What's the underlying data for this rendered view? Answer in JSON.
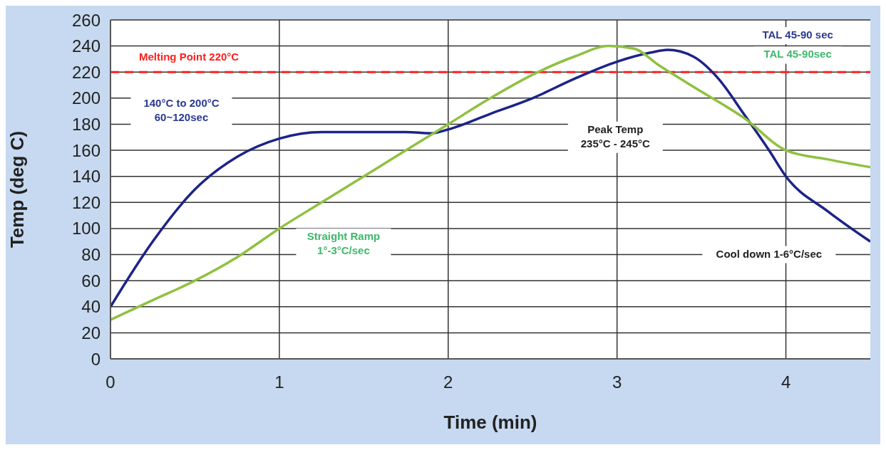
{
  "chart_data": {
    "type": "line",
    "xlabel": "Time (min)",
    "ylabel": "Temp (deg C)",
    "xlim": [
      0,
      4.5
    ],
    "xticks": [
      0,
      1,
      2,
      3,
      4
    ],
    "ylim": [
      0,
      260
    ],
    "yticks": [
      0,
      20,
      40,
      60,
      80,
      100,
      120,
      140,
      160,
      180,
      200,
      220,
      240,
      260
    ],
    "grid": true,
    "marker": "none",
    "line_style": "solid",
    "series": [
      {
        "color": "#1c2388",
        "x": [
          0,
          0.25,
          0.5,
          0.75,
          1,
          1.25,
          1.5,
          1.75,
          1.9,
          2,
          2.25,
          2.5,
          2.75,
          3,
          3.2,
          3.3,
          3.45,
          3.6,
          3.75,
          3.9,
          4,
          4.25,
          4.5
        ],
        "values": [
          40,
          90,
          130,
          155,
          169,
          174,
          174,
          174,
          173,
          176,
          188,
          200,
          215,
          228,
          235,
          237,
          232,
          215,
          188,
          160,
          140,
          113,
          90
        ]
      },
      {
        "color": "#8fc140",
        "x": [
          0,
          0.25,
          0.5,
          0.75,
          1,
          1.25,
          1.5,
          1.75,
          2,
          2.25,
          2.5,
          2.75,
          2.95,
          3.1,
          3.25,
          3.5,
          3.75,
          4,
          4.25,
          4.5
        ],
        "values": [
          30,
          45,
          60,
          78,
          100,
          120,
          140,
          160,
          180,
          200,
          218,
          232,
          240,
          238,
          225,
          205,
          185,
          160,
          153,
          147
        ]
      }
    ],
    "ref_lines": [
      {
        "axis": "y",
        "value": 220,
        "label": "Melting Point 220°C",
        "color": "#ff1e1e",
        "line_style": "dashed"
      }
    ],
    "annotations": [
      "TAL 45-90 sec",
      "TAL 45-90sec",
      "140°C to 200°C\n60~120sec",
      "Peak Temp\n235°C - 245°C",
      "Straight Ramp\n1°-3°C/sec",
      "Cool down 1-6°C/sec"
    ]
  }
}
